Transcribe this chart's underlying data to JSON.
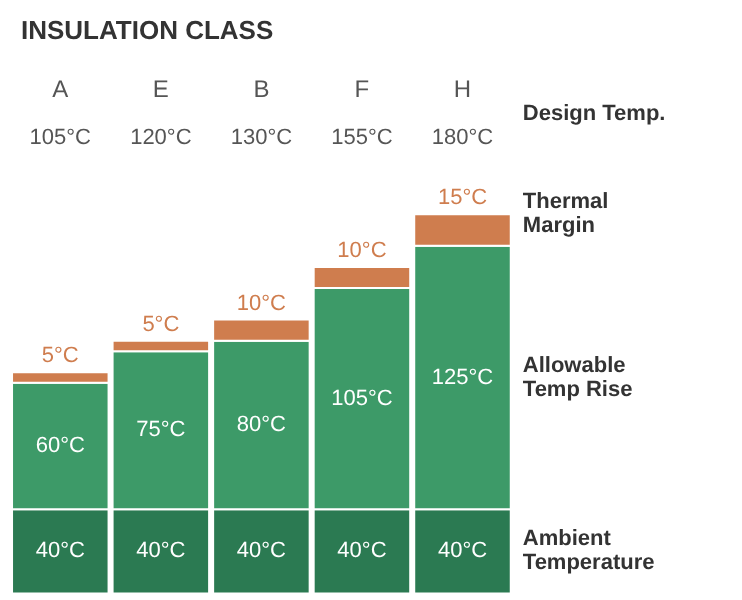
{
  "chart_data": {
    "type": "bar",
    "stacked": true,
    "title": "INSULATION CLASS",
    "categories": [
      "A",
      "E",
      "B",
      "F",
      "H"
    ],
    "series": [
      {
        "name": "Ambient Temperature",
        "color": "#2b7a52",
        "values": [
          40,
          40,
          40,
          40,
          40
        ],
        "value_labels": [
          "40°C",
          "40°C",
          "40°C",
          "40°C",
          "40°C"
        ]
      },
      {
        "name": "Allowable Temp Rise",
        "color": "#3d9a68",
        "values": [
          60,
          75,
          80,
          105,
          125
        ],
        "value_labels": [
          "60°C",
          "75°C",
          "80°C",
          "105°C",
          "125°C"
        ]
      },
      {
        "name": "Thermal Margin",
        "color": "#cf7d4e",
        "values": [
          5,
          5,
          10,
          10,
          15
        ],
        "value_labels": [
          "5°C",
          "5°C",
          "10°C",
          "10°C",
          "15°C"
        ]
      }
    ],
    "annotations": [
      "Design Temp.",
      "105°C",
      "120°C",
      "130°C",
      "155°C",
      "180°C"
    ]
  }
}
